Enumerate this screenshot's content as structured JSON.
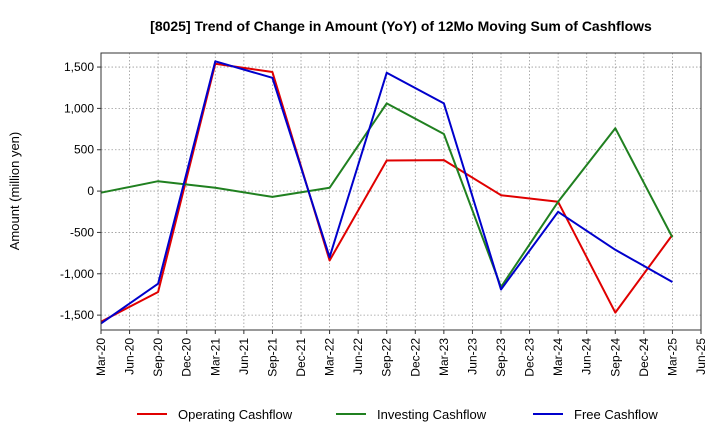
{
  "chart_data": {
    "type": "line",
    "title": "[8025]  Trend of Change in Amount (YoY) of 12Mo Moving Sum of Cashflows",
    "ylabel": "Amount (million yen)",
    "xlabel": "",
    "ylim": [
      -1680,
      1670
    ],
    "yticks": [
      1500,
      1000,
      500,
      0,
      -500,
      -1000,
      -1500
    ],
    "ytick_labels": [
      "1,500",
      "1,000",
      "500",
      "0",
      "-500",
      "-1,000",
      "-1,500"
    ],
    "categories": [
      "Mar-20",
      "Jun-20",
      "Sep-20",
      "Dec-20",
      "Mar-21",
      "Jun-21",
      "Sep-21",
      "Dec-21",
      "Mar-22",
      "Jun-22",
      "Sep-22",
      "Dec-22",
      "Mar-23",
      "Jun-23",
      "Sep-23",
      "Dec-23",
      "Mar-24",
      "Jun-24",
      "Sep-24",
      "Dec-24",
      "Mar-25",
      "Jun-25"
    ],
    "grid": true,
    "legend_position": "bottom",
    "series": [
      {
        "name": "Operating Cashflow",
        "color": "#e00000",
        "points": [
          {
            "x": "Mar-20",
            "y": -1580
          },
          {
            "x": "Sep-20",
            "y": -1220
          },
          {
            "x": "Mar-21",
            "y": 1540
          },
          {
            "x": "Sep-21",
            "y": 1440
          },
          {
            "x": "Mar-22",
            "y": -840
          },
          {
            "x": "Sep-22",
            "y": 370
          },
          {
            "x": "Mar-23",
            "y": 375
          },
          {
            "x": "Sep-23",
            "y": -50
          },
          {
            "x": "Mar-24",
            "y": -130
          },
          {
            "x": "Sep-24",
            "y": -1470
          },
          {
            "x": "Mar-25",
            "y": -530
          }
        ]
      },
      {
        "name": "Investing Cashflow",
        "color": "#208020",
        "points": [
          {
            "x": "Mar-20",
            "y": -20
          },
          {
            "x": "Sep-20",
            "y": 120
          },
          {
            "x": "Mar-21",
            "y": 40
          },
          {
            "x": "Sep-21",
            "y": -70
          },
          {
            "x": "Mar-22",
            "y": 40
          },
          {
            "x": "Sep-22",
            "y": 1060
          },
          {
            "x": "Mar-23",
            "y": 690
          },
          {
            "x": "Sep-23",
            "y": -1160
          },
          {
            "x": "Mar-24",
            "y": -130
          },
          {
            "x": "Sep-24",
            "y": 760
          },
          {
            "x": "Mar-25",
            "y": -560
          }
        ]
      },
      {
        "name": "Free Cashflow",
        "color": "#0000cc",
        "points": [
          {
            "x": "Mar-20",
            "y": -1600
          },
          {
            "x": "Sep-20",
            "y": -1120
          },
          {
            "x": "Mar-21",
            "y": 1570
          },
          {
            "x": "Sep-21",
            "y": 1370
          },
          {
            "x": "Mar-22",
            "y": -800
          },
          {
            "x": "Sep-22",
            "y": 1430
          },
          {
            "x": "Mar-23",
            "y": 1060
          },
          {
            "x": "Sep-23",
            "y": -1190
          },
          {
            "x": "Mar-24",
            "y": -250
          },
          {
            "x": "Sep-24",
            "y": -710
          },
          {
            "x": "Mar-25",
            "y": -1100
          }
        ]
      }
    ]
  }
}
